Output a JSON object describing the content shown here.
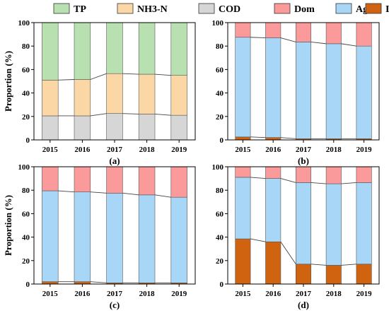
{
  "legend": [
    {
      "key": "TP",
      "label": "TP",
      "color": "#b8e0b0"
    },
    {
      "key": "NH3N",
      "label": "NH3-N",
      "color": "#fbd7a6"
    },
    {
      "key": "COD",
      "label": "COD",
      "color": "#d6d6d6"
    },
    {
      "key": "Dom",
      "label": "Dom",
      "color": "#fb9a9b"
    },
    {
      "key": "Agr",
      "label": "Agr",
      "color": "#a7d6f6"
    },
    {
      "key": "Ind",
      "label": "Ind",
      "color": "#d0630f"
    }
  ],
  "chart_data": [
    {
      "panel_label": "(a)",
      "type": "bar",
      "stacked": true,
      "categories": [
        "2015",
        "2016",
        "2017",
        "2018",
        "2019"
      ],
      "ylabel": "Proportion (%)",
      "ylim": [
        0,
        100
      ],
      "yticks": [
        0,
        20,
        40,
        60,
        80,
        100
      ],
      "series": [
        {
          "name": "COD",
          "color": "#d6d6d6",
          "values": [
            20.5,
            20.5,
            22.5,
            22,
            21
          ]
        },
        {
          "name": "NH3-N",
          "color": "#fbd7a6",
          "values": [
            30.5,
            31,
            34,
            34,
            34
          ]
        },
        {
          "name": "TP",
          "color": "#b8e0b0",
          "values": [
            49,
            48.5,
            43.5,
            44,
            45
          ]
        }
      ]
    },
    {
      "panel_label": "(b)",
      "type": "bar",
      "stacked": true,
      "categories": [
        "2015",
        "2016",
        "2017",
        "2018",
        "2019"
      ],
      "ylabel": "",
      "ylim": [
        0,
        100
      ],
      "yticks": [
        0,
        20,
        40,
        60,
        80,
        100
      ],
      "series": [
        {
          "name": "Ind",
          "color": "#d0630f",
          "values": [
            2.5,
            2,
            1,
            1,
            1
          ]
        },
        {
          "name": "Agr",
          "color": "#a7d6f6",
          "values": [
            85,
            85,
            82.5,
            81,
            79
          ]
        },
        {
          "name": "Dom",
          "color": "#fb9a9b",
          "values": [
            12.5,
            13,
            16.5,
            18,
            20
          ]
        }
      ]
    },
    {
      "panel_label": "(c)",
      "type": "bar",
      "stacked": true,
      "categories": [
        "2015",
        "2016",
        "2017",
        "2018",
        "2019"
      ],
      "ylabel": "Proportion (%)",
      "ylim": [
        0,
        100
      ],
      "yticks": [
        0,
        20,
        40,
        60,
        80,
        100
      ],
      "series": [
        {
          "name": "Ind",
          "color": "#d0630f",
          "values": [
            2,
            2,
            1,
            1,
            1
          ]
        },
        {
          "name": "Agr",
          "color": "#a7d6f6",
          "values": [
            77.5,
            76.5,
            76.5,
            75,
            73
          ]
        },
        {
          "name": "Dom",
          "color": "#fb9a9b",
          "values": [
            20.5,
            21.5,
            22.5,
            24,
            26
          ]
        }
      ]
    },
    {
      "panel_label": "(d)",
      "type": "bar",
      "stacked": true,
      "categories": [
        "2015",
        "2016",
        "2017",
        "2018",
        "2019"
      ],
      "ylabel": "",
      "ylim": [
        0,
        100
      ],
      "yticks": [
        0,
        20,
        40,
        60,
        80,
        100
      ],
      "series": [
        {
          "name": "Ind",
          "color": "#d0630f",
          "values": [
            38.5,
            36,
            17,
            16,
            17
          ]
        },
        {
          "name": "Agr",
          "color": "#a7d6f6",
          "values": [
            52.5,
            54,
            69.5,
            69.5,
            69.5
          ]
        },
        {
          "name": "Dom",
          "color": "#fb9a9b",
          "values": [
            9,
            10,
            13.5,
            14.5,
            13.5
          ]
        }
      ]
    }
  ]
}
